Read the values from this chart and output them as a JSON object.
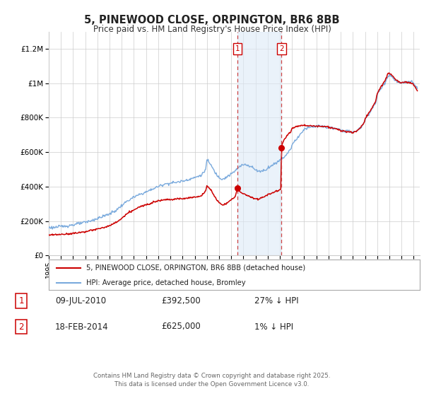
{
  "title": "5, PINEWOOD CLOSE, ORPINGTON, BR6 8BB",
  "subtitle": "Price paid vs. HM Land Registry's House Price Index (HPI)",
  "ylim": [
    0,
    1300000
  ],
  "yticks": [
    0,
    200000,
    400000,
    600000,
    800000,
    1000000,
    1200000
  ],
  "ytick_labels": [
    "£0",
    "£200K",
    "£400K",
    "£600K",
    "£800K",
    "£1M",
    "£1.2M"
  ],
  "xlim_start": 1995.0,
  "xlim_end": 2025.5,
  "xtick_years": [
    1995,
    1996,
    1997,
    1998,
    1999,
    2000,
    2001,
    2002,
    2003,
    2004,
    2005,
    2006,
    2007,
    2008,
    2009,
    2010,
    2011,
    2012,
    2013,
    2014,
    2015,
    2016,
    2017,
    2018,
    2019,
    2020,
    2021,
    2022,
    2023,
    2024,
    2025
  ],
  "event1_x": 2010.52,
  "event2_x": 2014.13,
  "event1_price": 392500,
  "event2_price": 625000,
  "shade_color": "#ddeaf7",
  "shade_alpha": 0.6,
  "vline_color": "#cc4444",
  "hpi_color": "#7aaadd",
  "price_color": "#cc0000",
  "legend_label_price": "5, PINEWOOD CLOSE, ORPINGTON, BR6 8BB (detached house)",
  "legend_label_hpi": "HPI: Average price, detached house, Bromley",
  "table_row1": [
    "1",
    "09-JUL-2010",
    "£392,500",
    "27% ↓ HPI"
  ],
  "table_row2": [
    "2",
    "18-FEB-2014",
    "£625,000",
    "1% ↓ HPI"
  ],
  "footnote": "Contains HM Land Registry data © Crown copyright and database right 2025.\nThis data is licensed under the Open Government Licence v3.0.",
  "background_color": "#ffffff",
  "grid_color": "#cccccc"
}
